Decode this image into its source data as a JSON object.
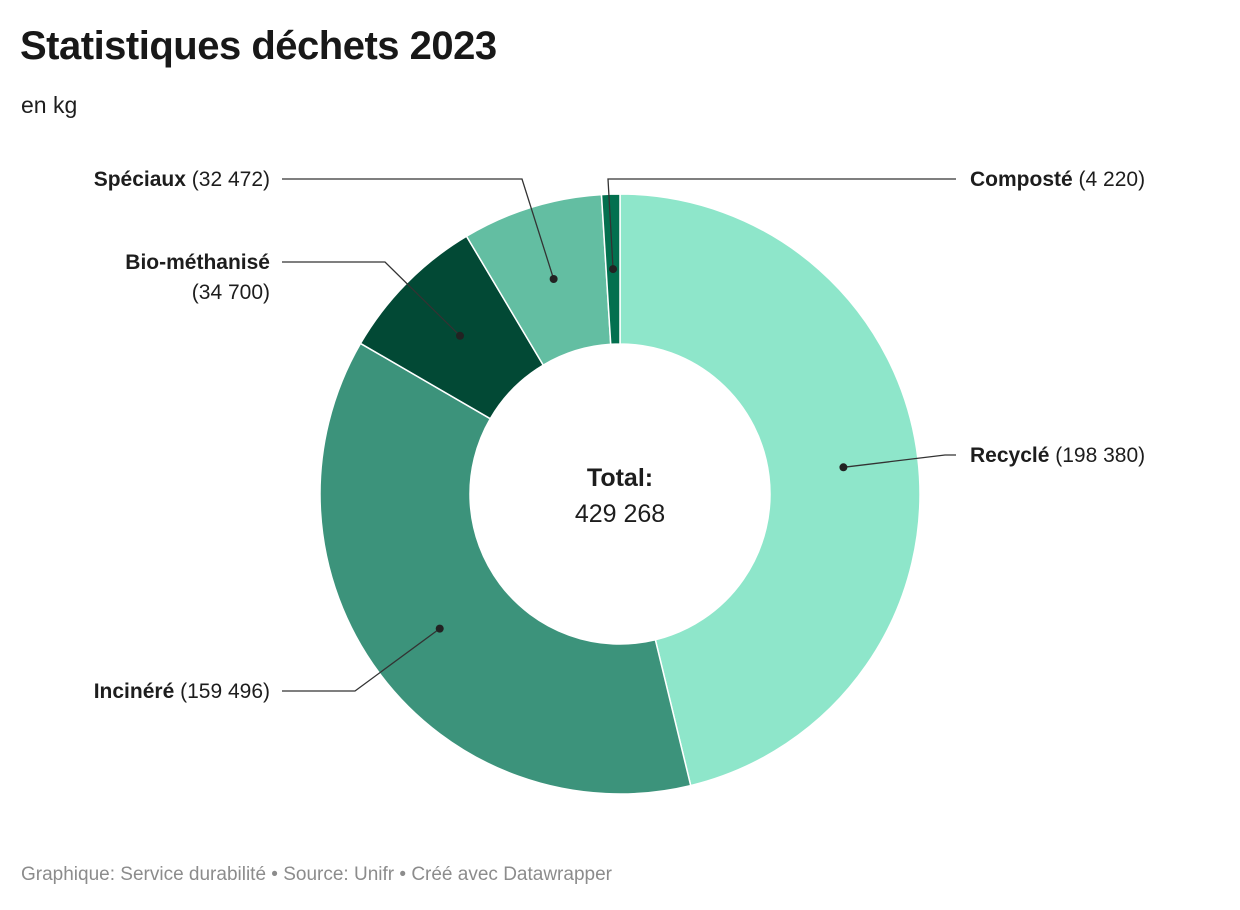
{
  "title": "Statistiques déchets 2023",
  "subtitle": "en kg",
  "footer": "Graphique: Service durabilité • Source: Unifr • Créé avec Datawrapper",
  "chart_data": {
    "type": "pie",
    "variant": "donut",
    "title": "Statistiques déchets 2023",
    "subtitle": "en kg",
    "center_label": "Total:",
    "center_value": "429 268",
    "total": 429268,
    "slices": [
      {
        "name": "Recyclé",
        "value": 198380,
        "value_label": "(198 380)",
        "color": "#8ee6ca"
      },
      {
        "name": "Inciné­ré",
        "value": 159496,
        "value_label": "(159 496)",
        "color": "#3c937b"
      },
      {
        "name": "Bio-méthanisé",
        "value": 34700,
        "value_label": "(34 700)",
        "color": "#024935"
      },
      {
        "name": "Spéciaux",
        "value": 32472,
        "value_label": "(32 472)",
        "color": "#63bea2"
      },
      {
        "name": "Composté",
        "value": 4220,
        "value_label": "(4 220)",
        "color": "#03704f"
      }
    ]
  }
}
